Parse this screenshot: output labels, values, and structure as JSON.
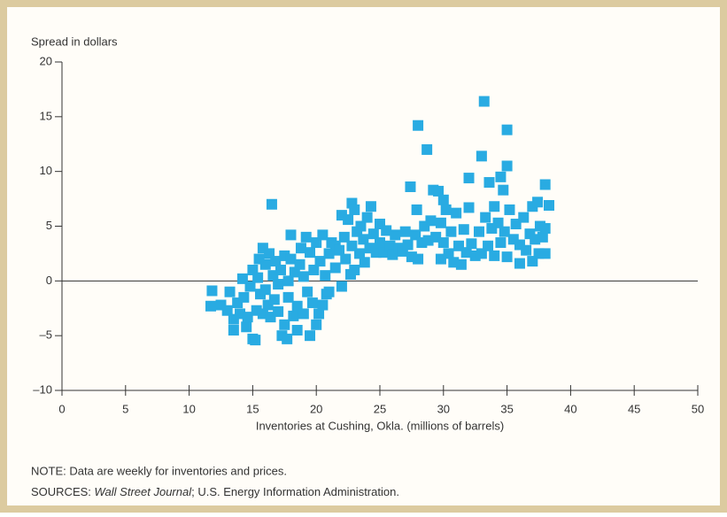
{
  "chart_data": {
    "type": "scatter",
    "y_axis_label": "Spread in dollars",
    "x_axis_label": "Inventories at Cushing, Okla. (millions of barrels)",
    "note": "NOTE: Data are weekly for inventories and prices.",
    "sources_prefix": "SOURCES: ",
    "sources_italic": "Wall Street Journal",
    "sources_rest": "; U.S. Energy Information Administration.",
    "color": "#29abe2",
    "zero_line": true,
    "xlim": [
      0,
      50
    ],
    "xticks": [
      0,
      5,
      10,
      15,
      20,
      25,
      30,
      35,
      40,
      45,
      50
    ],
    "ylim": [
      -10,
      20
    ],
    "yticks": [
      {
        "value": -10,
        "label": "–10"
      },
      {
        "value": -5,
        "label": "–5"
      },
      0,
      5,
      10,
      15,
      20
    ],
    "x": [
      11.8,
      11.7,
      12.5,
      13,
      13.2,
      13.5,
      13.5,
      13.8,
      14,
      14.2,
      14.3,
      14.5,
      14.6,
      14.8,
      15,
      15,
      15.2,
      15.3,
      15.4,
      15.5,
      15.6,
      15.8,
      15.8,
      16,
      16,
      16.2,
      16.3,
      16.4,
      16.5,
      16.6,
      16.7,
      16.8,
      17,
      17,
      17.2,
      17.3,
      17.5,
      17.5,
      17.7,
      17.8,
      17.8,
      18,
      18,
      18.2,
      18.3,
      18.5,
      18.5,
      18.7,
      18.8,
      19,
      19,
      19.2,
      19.3,
      19.5,
      19.5,
      19.7,
      19.8,
      20,
      20,
      20.2,
      20.3,
      20.5,
      20.5,
      20.7,
      20.8,
      21,
      21,
      21.2,
      21.5,
      21.5,
      21.8,
      22,
      22,
      22.2,
      22.3,
      22.5,
      22.7,
      22.8,
      22.8,
      23,
      23,
      23.2,
      23.4,
      23.5,
      23.7,
      23.8,
      24,
      24.2,
      24.3,
      24.5,
      24.7,
      25,
      25,
      25.3,
      25.5,
      25.8,
      26,
      26.2,
      26.5,
      26.8,
      27,
      27.2,
      27.4,
      27.5,
      27.8,
      27.9,
      28,
      28,
      28.3,
      28.5,
      28.7,
      28.8,
      29,
      29.2,
      29.4,
      29.6,
      29.8,
      29.8,
      30,
      30,
      30.2,
      30.4,
      30.6,
      30.8,
      31,
      31.2,
      31.4,
      31.6,
      31.8,
      32,
      32,
      32.2,
      32.5,
      32.8,
      33,
      33,
      33.2,
      33.3,
      33.5,
      33.6,
      33.8,
      34,
      34,
      34.3,
      34.5,
      34.5,
      34.7,
      34.8,
      35,
      35,
      35,
      35.2,
      35.5,
      35.7,
      36,
      36,
      36.3,
      36.5,
      36.8,
      37,
      37,
      37.2,
      37.4,
      37.5,
      37.6,
      37.8,
      38,
      38,
      38,
      38.3
    ],
    "values": [
      -0.9,
      -2.3,
      -2.2,
      -2.7,
      -1,
      -3.5,
      -4.5,
      -2,
      -3,
      0.2,
      -1.5,
      -4.2,
      -3.3,
      -0.5,
      1,
      -5.3,
      -5.4,
      -2.7,
      0.3,
      2,
      -1.2,
      -3,
      3,
      -0.8,
      1.5,
      -2.2,
      2.5,
      -3.3,
      7,
      0.5,
      -1.7,
      1.8,
      -0.3,
      -2.8,
      1,
      -5,
      2.3,
      -4,
      -5.3,
      0,
      -1.5,
      4.2,
      2,
      -3.2,
      0.8,
      -4.5,
      -2.3,
      1.5,
      3,
      -3,
      0.4,
      4,
      -1,
      -5,
      2.6,
      -2,
      1,
      3.5,
      -4,
      -3,
      1.8,
      4.2,
      -2.2,
      0.5,
      -1.2,
      2.5,
      -1,
      3.5,
      1.2,
      3.2,
      2.8,
      6,
      -0.5,
      4,
      2,
      5.6,
      0.6,
      7.1,
      3.2,
      1,
      6.5,
      4.5,
      2.5,
      5,
      3.8,
      1.7,
      5.8,
      3,
      6.8,
      4.3,
      2.6,
      5.2,
      3.5,
      2.6,
      4.6,
      3.2,
      2.4,
      4.2,
      3,
      2.7,
      4.5,
      3.3,
      8.6,
      2.2,
      4.2,
      6.5,
      14.2,
      2,
      3.5,
      5,
      12,
      3.7,
      5.5,
      8.3,
      4,
      8.2,
      2,
      5.3,
      7.4,
      3.5,
      6.5,
      2.5,
      4.5,
      1.7,
      6.2,
      3.2,
      1.5,
      4.7,
      2.6,
      9.4,
      6.7,
      3.4,
      2.3,
      4.5,
      11.4,
      2.5,
      16.4,
      5.8,
      3.2,
      9,
      4.8,
      6.8,
      2.3,
      5.3,
      9.5,
      3.5,
      8.3,
      4.5,
      13.8,
      10.5,
      2.2,
      6.5,
      3.8,
      5.2,
      1.6,
      3.3,
      5.8,
      2.8,
      4.3,
      6.8,
      1.8,
      3.8,
      7.2,
      2.5,
      5,
      4,
      8.8,
      2.5,
      4.8,
      6.9
    ]
  }
}
